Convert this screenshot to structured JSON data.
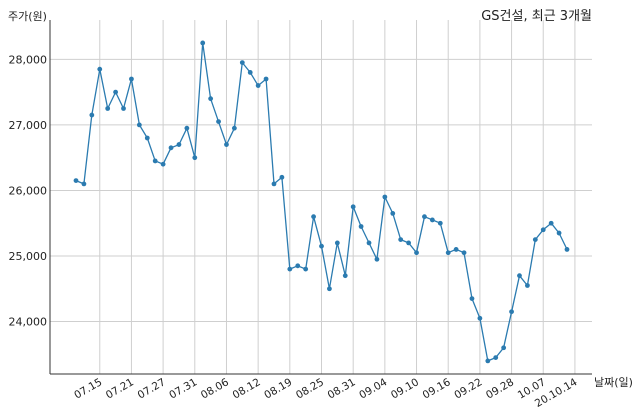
{
  "chart_data": {
    "type": "line",
    "title": "GS건설, 최근 3개월",
    "ylabel": "주가(원)",
    "xlabel": "날짜(일)",
    "ylim": [
      23200,
      28600
    ],
    "yticks": [
      24000,
      25000,
      26000,
      27000,
      28000
    ],
    "ytick_labels": [
      "24,000",
      "25,000",
      "26,000",
      "27,000",
      "28,000"
    ],
    "grid": true,
    "xtick_labels": [
      "07.15",
      "07.21",
      "07.27",
      "07.31",
      "08.06",
      "08.12",
      "08.19",
      "08.25",
      "08.31",
      "09.04",
      "09.10",
      "09.16",
      "09.22",
      "09.28",
      "10.07",
      "20.10.14"
    ],
    "xtick_indices": [
      3,
      7,
      11,
      15,
      19,
      23,
      27,
      31,
      35,
      39,
      43,
      47,
      51,
      55,
      59,
      63
    ],
    "color": "#2b7bb0",
    "series": [
      {
        "values": [
          26150,
          26100,
          27150,
          27850,
          27250,
          27500,
          27250,
          27700,
          27000,
          26800,
          26450,
          26400,
          26650,
          26700,
          26950,
          26500,
          28250,
          27400,
          27050,
          26700,
          26950,
          27950,
          27800,
          27600,
          27700,
          26100,
          26200,
          24800,
          24850,
          24800,
          25600,
          25150,
          24500,
          25200,
          24700,
          25750,
          25450,
          25200,
          24950,
          25900,
          25650,
          25250,
          25200,
          25050,
          25600,
          25550,
          25500,
          25050,
          25100,
          25050,
          24350,
          24050,
          23400,
          23450,
          23600,
          24150,
          24700,
          24550,
          25250,
          25400,
          25500,
          25350,
          25100
        ]
      }
    ]
  }
}
